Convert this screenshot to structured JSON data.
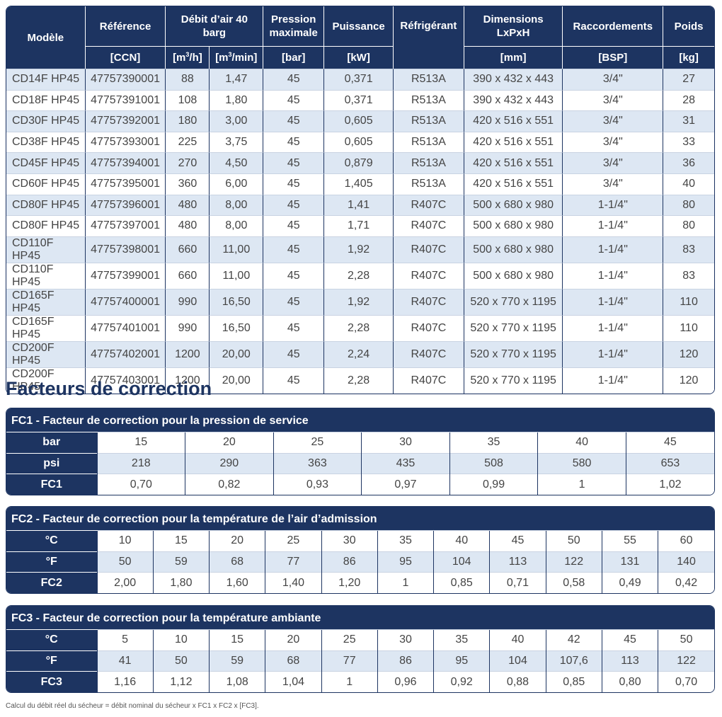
{
  "main": {
    "headers": {
      "model": "Modèle",
      "reference": "Référence",
      "airflow": "Débit d’air 40 barg",
      "pressure": "Pression maximale",
      "power": "Puissance",
      "refrigerant": "Réfrigérant",
      "dimensions": "Dimensions LxPxH",
      "connections": "Raccordements",
      "weight": "Poids"
    },
    "units": {
      "reference": "[CCN]",
      "airflow_h_pre": "[m",
      "airflow_h_sup": "3",
      "airflow_h_post": "/h]",
      "airflow_min_pre": "[m",
      "airflow_min_sup": "3",
      "airflow_min_post": "/min]",
      "pressure": "[bar]",
      "power": "[kW]",
      "dimensions": "[mm]",
      "connections": "[BSP]",
      "weight": "[kg]"
    },
    "rows": [
      [
        "CD14F HP45",
        "47757390001",
        "88",
        "1,47",
        "45",
        "0,371",
        "R513A",
        "390 x 432 x 443",
        "3/4\"",
        "27"
      ],
      [
        "CD18F HP45",
        "47757391001",
        "108",
        "1,80",
        "45",
        "0,371",
        "R513A",
        "390 x 432 x 443",
        "3/4\"",
        "28"
      ],
      [
        "CD30F HP45",
        "47757392001",
        "180",
        "3,00",
        "45",
        "0,605",
        "R513A",
        "420 x 516 x 551",
        "3/4\"",
        "31"
      ],
      [
        "CD38F HP45",
        "47757393001",
        "225",
        "3,75",
        "45",
        "0,605",
        "R513A",
        "420 x 516 x 551",
        "3/4\"",
        "33"
      ],
      [
        "CD45F HP45",
        "47757394001",
        "270",
        "4,50",
        "45",
        "0,879",
        "R513A",
        "420 x 516 x 551",
        "3/4\"",
        "36"
      ],
      [
        "CD60F HP45",
        "47757395001",
        "360",
        "6,00",
        "45",
        "1,405",
        "R513A",
        "420 x 516 x 551",
        "3/4\"",
        "40"
      ],
      [
        "CD80F HP45",
        "47757396001",
        "480",
        "8,00",
        "45",
        "1,41",
        "R407C",
        "500 x 680 x 980",
        "1-1/4\"",
        "80"
      ],
      [
        "CD80F HP45",
        "47757397001",
        "480",
        "8,00",
        "45",
        "1,71",
        "R407C",
        "500 x 680 x 980",
        "1-1/4\"",
        "80"
      ],
      [
        "CD110F HP45",
        "47757398001",
        "660",
        "11,00",
        "45",
        "1,92",
        "R407C",
        "500 x 680 x 980",
        "1-1/4\"",
        "83"
      ],
      [
        "CD110F HP45",
        "47757399001",
        "660",
        "11,00",
        "45",
        "2,28",
        "R407C",
        "500 x 680 x 980",
        "1-1/4\"",
        "83"
      ],
      [
        "CD165F HP45",
        "47757400001",
        "990",
        "16,50",
        "45",
        "1,92",
        "R407C",
        "520 x 770 x 1195",
        "1-1/4\"",
        "110"
      ],
      [
        "CD165F HP45",
        "47757401001",
        "990",
        "16,50",
        "45",
        "2,28",
        "R407C",
        "520 x 770 x 1195",
        "1-1/4\"",
        "110"
      ],
      [
        "CD200F HP45",
        "47757402001",
        "1200",
        "20,00",
        "45",
        "2,24",
        "R407C",
        "520 x 770 x 1195",
        "1-1/4\"",
        "120"
      ],
      [
        "CD200F HP45",
        "47757403001",
        "1200",
        "20,00",
        "45",
        "2,28",
        "R407C",
        "520 x 770 x 1195",
        "1-1/4\"",
        "120"
      ]
    ]
  },
  "section_title": "Facteurs de correction",
  "fc1": {
    "title": "FC1 - Facteur de correction pour la pression de service",
    "rows": [
      {
        "label": "bar",
        "values": [
          "15",
          "20",
          "25",
          "30",
          "35",
          "40",
          "45"
        ]
      },
      {
        "label": "psi",
        "values": [
          "218",
          "290",
          "363",
          "435",
          "508",
          "580",
          "653"
        ]
      },
      {
        "label": "FC1",
        "values": [
          "0,70",
          "0,82",
          "0,93",
          "0,97",
          "0,99",
          "1",
          "1,02"
        ]
      }
    ]
  },
  "fc2": {
    "title": "FC2 - Facteur de correction pour la température de l’air d’admission",
    "rows": [
      {
        "label": "°C",
        "values": [
          "10",
          "15",
          "20",
          "25",
          "30",
          "35",
          "40",
          "45",
          "50",
          "55",
          "60"
        ]
      },
      {
        "label": "°F",
        "values": [
          "50",
          "59",
          "68",
          "77",
          "86",
          "95",
          "104",
          "113",
          "122",
          "131",
          "140"
        ]
      },
      {
        "label": "FC2",
        "values": [
          "2,00",
          "1,80",
          "1,60",
          "1,40",
          "1,20",
          "1",
          "0,85",
          "0,71",
          "0,58",
          "0,49",
          "0,42"
        ]
      }
    ]
  },
  "fc3": {
    "title": "FC3 - Facteur de correction pour la température ambiante",
    "rows": [
      {
        "label": "°C",
        "values": [
          "5",
          "10",
          "15",
          "20",
          "25",
          "30",
          "35",
          "40",
          "42",
          "45",
          "50"
        ]
      },
      {
        "label": "°F",
        "values": [
          "41",
          "50",
          "59",
          "68",
          "77",
          "86",
          "95",
          "104",
          "107,6",
          "113",
          "122"
        ]
      },
      {
        "label": "FC3",
        "values": [
          "1,16",
          "1,12",
          "1,08",
          "1,04",
          "1",
          "0,96",
          "0,92",
          "0,88",
          "0,85",
          "0,80",
          "0,70"
        ]
      }
    ]
  },
  "footnote": "Calcul du débit réel du sécheur = débit nominal du sécheur x FC1 x FC2 x [FC3]."
}
